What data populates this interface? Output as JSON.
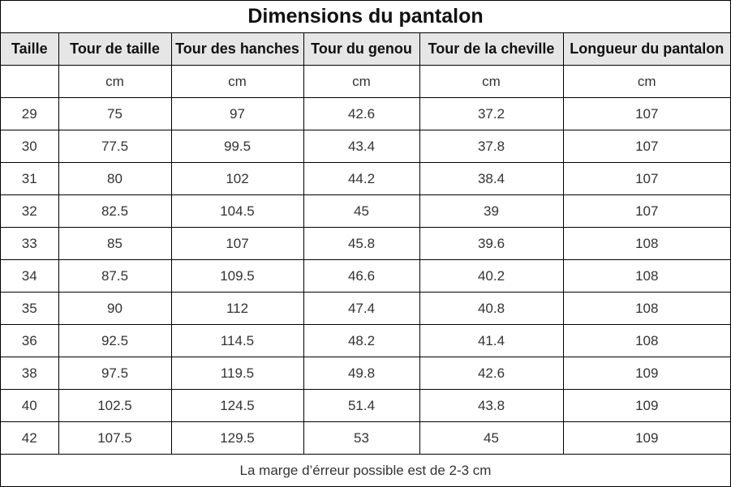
{
  "title": "Dimensions du pantalon",
  "columns": [
    "Taille",
    "Tour de taille",
    "Tour des hanches",
    "Tour du genou",
    "Tour de la cheville",
    "Longueur du pantalon"
  ],
  "units": [
    "",
    "cm",
    "cm",
    "cm",
    "cm",
    "cm"
  ],
  "rows": [
    [
      "29",
      "75",
      "97",
      "42.6",
      "37.2",
      "107"
    ],
    [
      "30",
      "77.5",
      "99.5",
      "43.4",
      "37.8",
      "107"
    ],
    [
      "31",
      "80",
      "102",
      "44.2",
      "38.4",
      "107"
    ],
    [
      "32",
      "82.5",
      "104.5",
      "45",
      "39",
      "107"
    ],
    [
      "33",
      "85",
      "107",
      "45.8",
      "39.6",
      "108"
    ],
    [
      "34",
      "87.5",
      "109.5",
      "46.6",
      "40.2",
      "108"
    ],
    [
      "35",
      "90",
      "112",
      "47.4",
      "40.8",
      "108"
    ],
    [
      "36",
      "92.5",
      "114.5",
      "48.2",
      "41.4",
      "108"
    ],
    [
      "38",
      "97.5",
      "119.5",
      "49.8",
      "42.6",
      "109"
    ],
    [
      "40",
      "102.5",
      "124.5",
      "51.4",
      "43.8",
      "109"
    ],
    [
      "42",
      "107.5",
      "129.5",
      "53",
      "45",
      "109"
    ]
  ],
  "footer_note": "La marge d’érreur possible est de 2-3 cm",
  "colors": {
    "header_background": "#e6e6e6",
    "border": "#000000",
    "text": "#333333"
  }
}
